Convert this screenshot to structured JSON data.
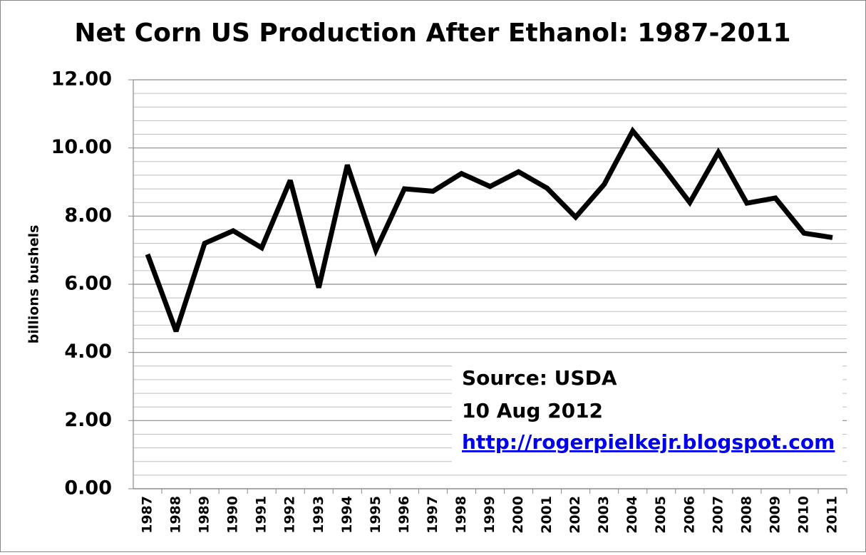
{
  "chart_data": {
    "type": "line",
    "title": "Net Corn US Production After Ethanol: 1987-2011",
    "y_label": "billions bushels",
    "categories": [
      "1987",
      "1988",
      "1989",
      "1990",
      "1991",
      "1992",
      "1993",
      "1994",
      "1995",
      "1996",
      "1997",
      "1998",
      "1999",
      "2000",
      "2001",
      "2002",
      "2003",
      "2004",
      "2005",
      "2006",
      "2007",
      "2008",
      "2009",
      "2010",
      "2011"
    ],
    "series": [
      {
        "color": "#000000",
        "values": [
          6.88,
          4.62,
          7.2,
          7.57,
          7.07,
          9.05,
          5.9,
          9.5,
          7.0,
          8.8,
          8.73,
          9.25,
          8.87,
          9.3,
          8.82,
          7.97,
          8.93,
          10.5,
          9.5,
          8.4,
          9.87,
          8.38,
          8.53,
          7.5,
          7.37
        ]
      }
    ],
    "ylim": [
      0,
      12
    ],
    "yticks": [
      {
        "value": 0,
        "label": "0.00"
      },
      {
        "value": 2,
        "label": "2.00"
      },
      {
        "value": 4,
        "label": "4.00"
      },
      {
        "value": 6,
        "label": "6.00"
      },
      {
        "value": 8,
        "label": "8.00"
      },
      {
        "value": 10,
        "label": "10.00"
      },
      {
        "value": 12,
        "label": "12.00"
      }
    ],
    "minor_yticks": [
      0.4,
      0.8,
      1.2,
      1.6,
      2.4,
      2.8,
      3.2,
      3.6,
      4.4,
      4.8,
      5.2,
      5.6,
      6.4,
      6.8,
      7.2,
      7.6,
      8.4,
      8.8,
      9.2,
      9.6,
      10.4,
      10.8,
      11.2,
      11.6
    ],
    "grid": true,
    "annotation": {
      "source": "Source: USDA",
      "date": "10 Aug 2012",
      "link": "http://rogerpielkejr.blogspot.com"
    }
  }
}
